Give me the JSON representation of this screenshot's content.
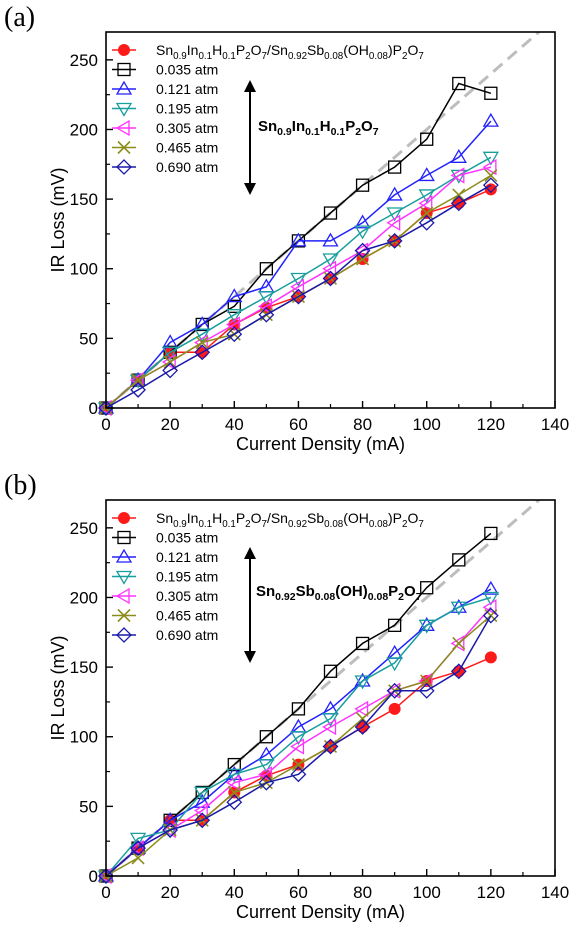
{
  "panels": [
    {
      "letter": "(a)",
      "annotation": {
        "main": "Sn",
        "parts": [
          [
            "0.9",
            "sub"
          ],
          [
            "In",
            ""
          ],
          [
            "0.1",
            "sub"
          ],
          [
            "H",
            ""
          ],
          [
            "0.1",
            "sub"
          ],
          [
            "P",
            ""
          ],
          [
            "2",
            "sub"
          ],
          [
            "O",
            ""
          ],
          [
            "7",
            "sub"
          ]
        ]
      }
    },
    {
      "letter": "(b)",
      "annotation": {
        "main": "Sn",
        "parts": [
          [
            "0.92",
            "sub"
          ],
          [
            "Sb",
            ""
          ],
          [
            "0.08",
            "sub"
          ],
          [
            "(OH)",
            ""
          ],
          [
            "0.08",
            "sub"
          ],
          [
            "P",
            ""
          ],
          [
            "2",
            "sub"
          ],
          [
            "O",
            ""
          ],
          [
            "7",
            "sub"
          ]
        ]
      }
    }
  ],
  "legend_first_entry": {
    "main": "Sn",
    "parts": [
      [
        "0.9",
        "sub"
      ],
      [
        "In",
        ""
      ],
      [
        "0.1",
        "sub"
      ],
      [
        "H",
        ""
      ],
      [
        "0.1",
        "sub"
      ],
      [
        "P",
        ""
      ],
      [
        "2",
        "sub"
      ],
      [
        "O",
        ""
      ],
      [
        "7",
        "sub"
      ],
      [
        "/Sn",
        ""
      ],
      [
        "0.92",
        "sub"
      ],
      [
        "Sb",
        ""
      ],
      [
        "0.08",
        "sub"
      ],
      [
        "(OH",
        ""
      ],
      [
        "0.08",
        "sub"
      ],
      [
        ")P",
        ""
      ],
      [
        "2",
        "sub"
      ],
      [
        "O",
        ""
      ],
      [
        "7",
        "sub"
      ]
    ]
  },
  "colors": {
    "reference": "#ff1a1a",
    "0.035": "#000000",
    "0.121": "#2222ff",
    "0.195": "#199e9e",
    "0.305": "#ff33ff",
    "0.465": "#8c8c1a",
    "0.690": "#1a1aa8",
    "guide": "#bdbdbd"
  },
  "chart_data": [
    {
      "type": "line",
      "xlabel": "Current Density (mA)",
      "ylabel": "IR Loss  (mV)",
      "xlim": [
        0,
        140
      ],
      "ylim": [
        0,
        270
      ],
      "xticks": [
        0,
        20,
        40,
        60,
        80,
        100,
        120,
        140
      ],
      "yticks": [
        0,
        50,
        100,
        150,
        200,
        250
      ],
      "guide_line": {
        "x": [
          0,
          140
        ],
        "y": [
          0,
          280
        ],
        "style": "dashed"
      },
      "legend_position": "top-left",
      "x": [
        0,
        10,
        20,
        30,
        40,
        50,
        60,
        70,
        80,
        90,
        100,
        110,
        120
      ],
      "series": [
        {
          "label_key": "legend_first_entry",
          "marker": "filled-circle",
          "color_key": "reference",
          "values": [
            0,
            20,
            40,
            40,
            60,
            72,
            80,
            93,
            107,
            120,
            140,
            147,
            157
          ]
        },
        {
          "name": "0.035 atm",
          "marker": "square",
          "color_key": "0.035",
          "values": [
            0,
            20,
            40,
            60,
            73,
            100,
            120,
            140,
            160,
            173,
            193,
            233,
            226
          ]
        },
        {
          "name": "0.121 atm",
          "marker": "triangle-up",
          "color_key": "0.121",
          "values": [
            0,
            20,
            47,
            60,
            80,
            87,
            120,
            120,
            133,
            153,
            167,
            180,
            206
          ]
        },
        {
          "name": "0.195 atm",
          "marker": "triangle-down",
          "color_key": "0.195",
          "values": [
            0,
            20,
            40,
            53,
            67,
            80,
            93,
            107,
            127,
            140,
            153,
            167,
            180
          ]
        },
        {
          "name": "0.305 atm",
          "marker": "triangle-left",
          "color_key": "0.305",
          "values": [
            0,
            20,
            33,
            47,
            60,
            73,
            87,
            100,
            113,
            133,
            147,
            167,
            173
          ]
        },
        {
          "name": "0.465 atm",
          "marker": "x",
          "color_key": "0.465",
          "values": [
            0,
            20,
            33,
            47,
            53,
            67,
            80,
            93,
            107,
            120,
            140,
            153,
            167
          ]
        },
        {
          "name": "0.690 atm",
          "marker": "diamond",
          "color_key": "0.690",
          "values": [
            0,
            13,
            27,
            40,
            53,
            67,
            80,
            93,
            113,
            120,
            133,
            147,
            160
          ]
        }
      ]
    },
    {
      "type": "line",
      "xlabel": "Current Density (mA)",
      "ylabel": "IR Loss  (mV)",
      "xlim": [
        0,
        140
      ],
      "ylim": [
        0,
        270
      ],
      "xticks": [
        0,
        20,
        40,
        60,
        80,
        100,
        120,
        140
      ],
      "yticks": [
        0,
        50,
        100,
        150,
        200,
        250
      ],
      "guide_line": {
        "x": [
          0,
          140
        ],
        "y": [
          0,
          280
        ],
        "style": "dashed"
      },
      "legend_position": "top-left",
      "x": [
        0,
        10,
        20,
        30,
        40,
        50,
        60,
        70,
        80,
        90,
        100,
        110,
        120
      ],
      "series": [
        {
          "label_key": "legend_first_entry",
          "marker": "filled-circle",
          "color_key": "reference",
          "values": [
            0,
            20,
            40,
            40,
            60,
            72,
            80,
            93,
            107,
            120,
            140,
            147,
            157
          ]
        },
        {
          "name": "0.035 atm",
          "marker": "square",
          "color_key": "0.035",
          "values": [
            0,
            20,
            40,
            60,
            80,
            100,
            120,
            147,
            167,
            180,
            207,
            227,
            246
          ]
        },
        {
          "name": "0.121 atm",
          "marker": "triangle-up",
          "color_key": "0.121",
          "values": [
            0,
            20,
            40,
            53,
            73,
            87,
            107,
            120,
            140,
            160,
            180,
            193,
            206
          ]
        },
        {
          "name": "0.195 atm",
          "marker": "triangle-down",
          "color_key": "0.195",
          "values": [
            0,
            27,
            33,
            60,
            73,
            80,
            100,
            113,
            140,
            153,
            180,
            193,
            200
          ]
        },
        {
          "name": "0.305 atm",
          "marker": "triangle-left",
          "color_key": "0.305",
          "values": [
            0,
            20,
            33,
            47,
            67,
            73,
            93,
            107,
            120,
            133,
            140,
            167,
            193
          ]
        },
        {
          "name": "0.465 atm",
          "marker": "x",
          "color_key": "0.465",
          "values": [
            0,
            13,
            33,
            40,
            60,
            67,
            80,
            93,
            113,
            133,
            140,
            167,
            187
          ]
        },
        {
          "name": "0.690 atm",
          "marker": "diamond",
          "color_key": "0.690",
          "values": [
            0,
            20,
            33,
            40,
            53,
            67,
            73,
            93,
            107,
            133,
            133,
            147,
            187
          ]
        }
      ]
    }
  ]
}
